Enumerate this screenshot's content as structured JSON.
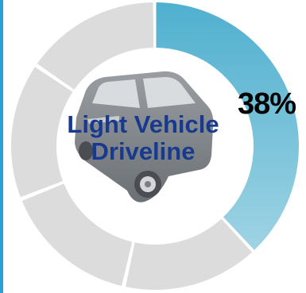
{
  "chart_data": {
    "type": "pie",
    "style": "donut",
    "segments": [
      {
        "value": 38,
        "highlighted": true
      },
      {
        "value": 62,
        "highlighted": false
      }
    ],
    "percent_label": "38%",
    "center_text": [
      "Light Vehicle",
      "Driveline"
    ],
    "center_icon": "car-icon",
    "highlight_color_start": "#4fb0cf",
    "highlight_color_end": "#9fd3e4",
    "inactive_color": "#dcdcdc",
    "title_color": "#173a8e"
  }
}
